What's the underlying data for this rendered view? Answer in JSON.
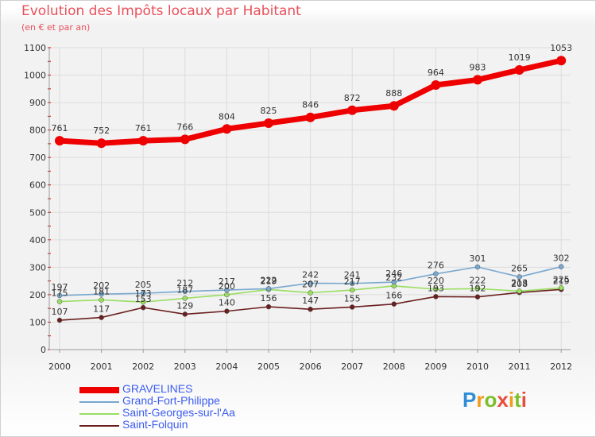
{
  "header": {
    "title": "Evolution des Impôts locaux par Habitant",
    "subtitle": "(en € et par an)"
  },
  "logo": {
    "text": "Proxiti"
  },
  "chart_data": {
    "type": "line",
    "title": "Evolution des Impôts locaux par Habitant",
    "subtitle": "(en € et par an)",
    "xlabel": "",
    "ylabel": "",
    "ylim": [
      0,
      1100
    ],
    "yticks": [
      0,
      100,
      200,
      300,
      400,
      500,
      600,
      700,
      800,
      900,
      1000,
      1100
    ],
    "categories": [
      "2000",
      "2001",
      "2002",
      "2003",
      "2004",
      "2005",
      "2006",
      "2007",
      "2008",
      "2009",
      "2010",
      "2011",
      "2012"
    ],
    "grid": true,
    "legend_position": "bottom-left",
    "series": [
      {
        "name": "GRAVELINES",
        "color": "#ee0000",
        "values": [
          761,
          752,
          761,
          766,
          804,
          825,
          846,
          872,
          888,
          964,
          983,
          1019,
          1053
        ]
      },
      {
        "name": "Grand-Fort-Philippe",
        "color": "#78a8d0",
        "values": [
          197,
          202,
          205,
          212,
          217,
          222,
          242,
          241,
          246,
          276,
          301,
          265,
          302
        ]
      },
      {
        "name": "Saint-Georges-sur-l'Aa",
        "color": "#98de60",
        "values": [
          175,
          181,
          173,
          187,
          200,
          219,
          207,
          217,
          232,
          220,
          222,
          213,
          225
        ]
      },
      {
        "name": "Saint-Folquin",
        "color": "#6a1f1f",
        "values": [
          107,
          117,
          153,
          129,
          140,
          156,
          147,
          155,
          166,
          193,
          192,
          208,
          219
        ]
      }
    ]
  }
}
